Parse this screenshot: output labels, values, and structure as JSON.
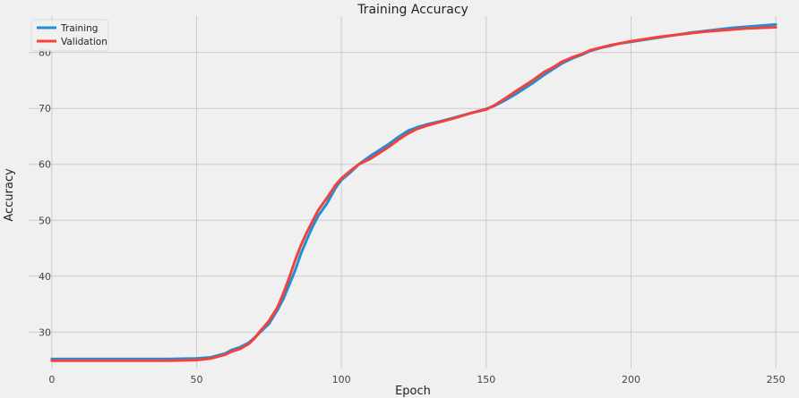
{
  "chart_data": {
    "type": "line",
    "title": "Training Accuracy",
    "xlabel": "Epoch",
    "ylabel": "Accuracy",
    "xlim": [
      -8,
      258
    ],
    "ylim": [
      23.5,
      86.5
    ],
    "xticks": [
      0,
      50,
      100,
      150,
      200,
      250
    ],
    "yticks": [
      30,
      40,
      50,
      60,
      70,
      80
    ],
    "grid": true,
    "legend_position": "top-left",
    "series": [
      {
        "name": "Training",
        "color": "#1f8fd6",
        "x": [
          0,
          10,
          20,
          30,
          40,
          50,
          55,
          60,
          62,
          65,
          68,
          70,
          72,
          75,
          78,
          80,
          82,
          84,
          86,
          88,
          90,
          92,
          95,
          98,
          100,
          103,
          106,
          110,
          113,
          116,
          120,
          123,
          126,
          130,
          135,
          140,
          145,
          150,
          153,
          156,
          160,
          163,
          166,
          170,
          173,
          176,
          180,
          183,
          186,
          190,
          193,
          196,
          200,
          205,
          210,
          215,
          220,
          225,
          230,
          235,
          240,
          245,
          250
        ],
        "y": [
          25.2,
          25.2,
          25.2,
          25.2,
          25.2,
          25.3,
          25.5,
          26.2,
          26.8,
          27.3,
          28.1,
          29.0,
          30.0,
          31.5,
          34.0,
          36.0,
          38.5,
          41.0,
          44.0,
          46.5,
          48.8,
          50.8,
          53.0,
          55.8,
          57.2,
          58.5,
          60.0,
          61.5,
          62.5,
          63.5,
          65.0,
          66.0,
          66.6,
          67.2,
          67.8,
          68.5,
          69.2,
          69.9,
          70.5,
          71.3,
          72.5,
          73.5,
          74.5,
          76.0,
          77.0,
          78.0,
          79.0,
          79.6,
          80.3,
          80.9,
          81.2,
          81.6,
          81.9,
          82.3,
          82.7,
          83.1,
          83.5,
          83.8,
          84.1,
          84.4,
          84.6,
          84.8,
          85.0
        ]
      },
      {
        "name": "Validation",
        "color": "#f4413d",
        "x": [
          0,
          10,
          20,
          30,
          40,
          50,
          55,
          60,
          62,
          65,
          68,
          70,
          72,
          75,
          78,
          80,
          82,
          84,
          86,
          88,
          90,
          92,
          95,
          98,
          100,
          103,
          106,
          110,
          113,
          116,
          120,
          123,
          126,
          130,
          135,
          140,
          145,
          150,
          153,
          156,
          160,
          163,
          166,
          170,
          173,
          176,
          180,
          183,
          186,
          190,
          193,
          196,
          200,
          205,
          210,
          215,
          220,
          225,
          230,
          235,
          240,
          245,
          250
        ],
        "y": [
          24.9,
          24.9,
          24.9,
          24.9,
          24.9,
          25.0,
          25.3,
          26.0,
          26.5,
          27.0,
          27.9,
          28.9,
          30.2,
          32.0,
          34.5,
          37.0,
          39.8,
          42.8,
          45.5,
          47.8,
          49.8,
          51.8,
          54.0,
          56.3,
          57.5,
          58.8,
          60.0,
          61.0,
          62.0,
          63.0,
          64.5,
          65.5,
          66.3,
          67.0,
          67.7,
          68.4,
          69.2,
          69.8,
          70.6,
          71.6,
          73.0,
          74.0,
          75.0,
          76.5,
          77.3,
          78.3,
          79.2,
          79.7,
          80.4,
          80.9,
          81.3,
          81.6,
          82.0,
          82.4,
          82.8,
          83.1,
          83.4,
          83.7,
          83.9,
          84.1,
          84.3,
          84.4,
          84.5
        ]
      }
    ]
  }
}
